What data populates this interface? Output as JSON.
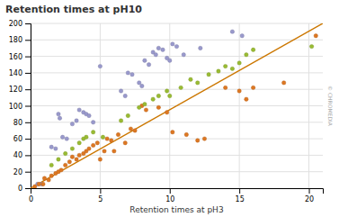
{
  "chart_data": {
    "type": "scatter",
    "title": "Retention times at pH10",
    "x_label": "Retention times at pH3",
    "annotations": [
      "© CHROMEDIA"
    ],
    "xlim": [
      0,
      21
    ],
    "ylim": [
      0,
      200
    ],
    "xticks": [
      0,
      5,
      10,
      15,
      20
    ],
    "yticks": [
      0,
      20,
      40,
      60,
      80,
      100,
      120,
      140,
      160,
      180,
      200
    ],
    "grid": true,
    "series": [
      {
        "type": "line",
        "color": "#cc7700",
        "x": [
          0,
          21
        ],
        "values": [
          0,
          200
        ]
      },
      {
        "type": "scatter",
        "color": "#9999cc",
        "x": [
          0.5,
          0.8,
          1.5,
          1.8,
          2.0,
          2.1,
          2.3,
          2.6,
          3.0,
          3.3,
          3.5,
          3.8,
          4.0,
          4.2,
          4.5,
          5.0,
          6.5,
          6.8,
          7.0,
          7.3,
          7.8,
          8.0,
          8.2,
          8.5,
          8.8,
          9.0,
          9.2,
          9.5,
          9.8,
          10.0,
          10.2,
          10.5,
          11.0,
          12.2,
          14.5,
          15.2
        ],
        "values": [
          5,
          5,
          50,
          48,
          90,
          85,
          62,
          60,
          78,
          82,
          95,
          92,
          90,
          88,
          80,
          148,
          118,
          112,
          140,
          138,
          128,
          124,
          155,
          150,
          165,
          162,
          170,
          168,
          158,
          155,
          175,
          172,
          162,
          170,
          190,
          185
        ]
      },
      {
        "type": "scatter",
        "color": "#dd7722",
        "x": [
          0.3,
          0.6,
          0.9,
          1.0,
          1.3,
          1.5,
          1.8,
          2.0,
          2.2,
          2.5,
          2.8,
          3.0,
          3.3,
          3.5,
          3.8,
          4.0,
          4.2,
          4.5,
          4.8,
          5.0,
          5.3,
          5.5,
          5.8,
          6.0,
          6.3,
          6.8,
          7.2,
          7.5,
          8.0,
          8.3,
          9.2,
          9.8,
          10.2,
          11.2,
          12.0,
          12.5,
          14.0,
          15.0,
          15.5,
          16.0,
          18.2,
          20.5
        ],
        "values": [
          2,
          5,
          5,
          12,
          10,
          15,
          18,
          20,
          22,
          28,
          32,
          38,
          35,
          40,
          42,
          45,
          48,
          52,
          55,
          35,
          45,
          60,
          58,
          45,
          65,
          55,
          72,
          70,
          100,
          95,
          98,
          92,
          68,
          65,
          58,
          60,
          122,
          118,
          108,
          122,
          128,
          185
        ]
      },
      {
        "type": "scatter",
        "color": "#99bb33",
        "x": [
          1.5,
          2.0,
          2.5,
          3.0,
          3.5,
          3.8,
          4.0,
          4.5,
          5.2,
          6.5,
          7.0,
          7.8,
          8.2,
          8.8,
          9.2,
          9.8,
          10.0,
          10.8,
          11.5,
          12.0,
          12.8,
          13.5,
          14.0,
          14.5,
          15.0,
          15.5,
          16.0,
          20.2
        ],
        "values": [
          28,
          35,
          42,
          48,
          55,
          60,
          62,
          68,
          62,
          82,
          88,
          98,
          102,
          108,
          112,
          118,
          112,
          122,
          132,
          128,
          138,
          142,
          148,
          145,
          152,
          162,
          168,
          172
        ]
      }
    ]
  }
}
